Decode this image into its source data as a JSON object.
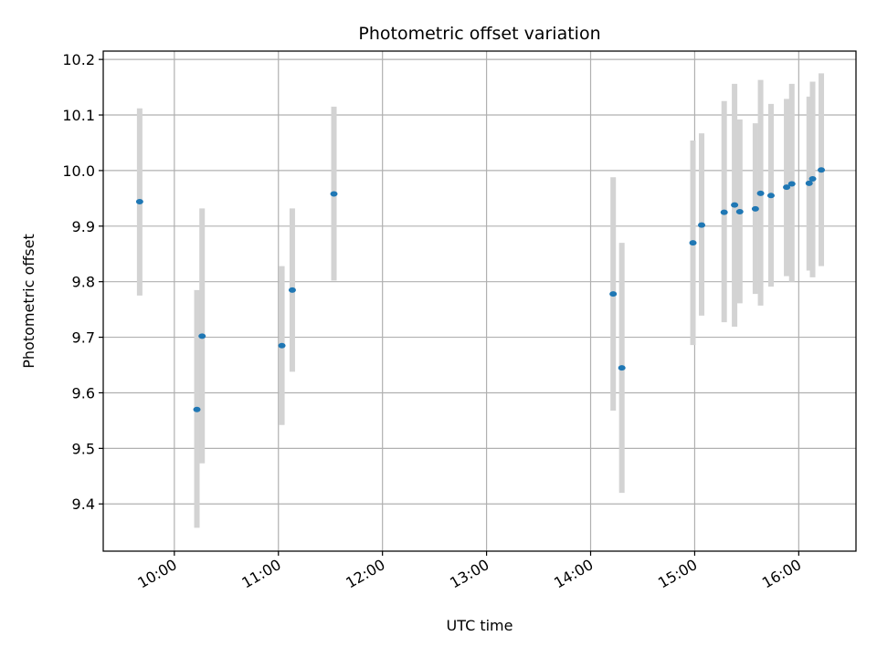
{
  "chart_data": {
    "type": "scatter",
    "title": "Photometric offset variation",
    "xlabel": "UTC time",
    "ylabel": "Photometric offset",
    "x_ticks": [
      "10:00",
      "11:00",
      "12:00",
      "13:00",
      "14:00",
      "15:00",
      "16:00"
    ],
    "y_ticks": [
      "9.4",
      "9.5",
      "9.6",
      "9.7",
      "9.8",
      "9.9",
      "10.0",
      "10.1",
      "10.2"
    ],
    "xlim": [
      "09:19",
      "16:33"
    ],
    "ylim": [
      9.315,
      10.215
    ],
    "grid": true,
    "point_color": "#1f77b4",
    "errorbar_color": "#d3d3d3",
    "points": [
      {
        "x": "09:40",
        "y": 9.944,
        "ylow": 9.775,
        "yhigh": 10.112
      },
      {
        "x": "10:13",
        "y": 9.57,
        "ylow": 9.357,
        "yhigh": 9.785
      },
      {
        "x": "10:16",
        "y": 9.702,
        "ylow": 9.473,
        "yhigh": 9.932
      },
      {
        "x": "11:02",
        "y": 9.685,
        "ylow": 9.542,
        "yhigh": 9.828
      },
      {
        "x": "11:08",
        "y": 9.785,
        "ylow": 9.638,
        "yhigh": 9.932
      },
      {
        "x": "11:32",
        "y": 9.958,
        "ylow": 9.802,
        "yhigh": 10.115
      },
      {
        "x": "14:13",
        "y": 9.778,
        "ylow": 9.568,
        "yhigh": 9.988
      },
      {
        "x": "14:18",
        "y": 9.645,
        "ylow": 9.42,
        "yhigh": 9.87
      },
      {
        "x": "14:59",
        "y": 9.87,
        "ylow": 9.686,
        "yhigh": 10.054
      },
      {
        "x": "15:04",
        "y": 9.902,
        "ylow": 9.739,
        "yhigh": 10.067
      },
      {
        "x": "15:17",
        "y": 9.925,
        "ylow": 9.727,
        "yhigh": 10.125
      },
      {
        "x": "15:23",
        "y": 9.938,
        "ylow": 9.719,
        "yhigh": 10.156
      },
      {
        "x": "15:26",
        "y": 9.926,
        "ylow": 9.761,
        "yhigh": 10.092
      },
      {
        "x": "15:35",
        "y": 9.931,
        "ylow": 9.778,
        "yhigh": 10.085
      },
      {
        "x": "15:38",
        "y": 9.959,
        "ylow": 9.757,
        "yhigh": 10.163
      },
      {
        "x": "15:44",
        "y": 9.955,
        "ylow": 9.791,
        "yhigh": 10.12
      },
      {
        "x": "15:53",
        "y": 9.97,
        "ylow": 9.81,
        "yhigh": 10.129
      },
      {
        "x": "15:56",
        "y": 9.976,
        "ylow": 9.8,
        "yhigh": 10.156
      },
      {
        "x": "16:06",
        "y": 9.977,
        "ylow": 9.82,
        "yhigh": 10.133
      },
      {
        "x": "16:08",
        "y": 9.985,
        "ylow": 9.808,
        "yhigh": 10.16
      },
      {
        "x": "16:13",
        "y": 10.001,
        "ylow": 9.828,
        "yhigh": 10.175
      }
    ]
  }
}
